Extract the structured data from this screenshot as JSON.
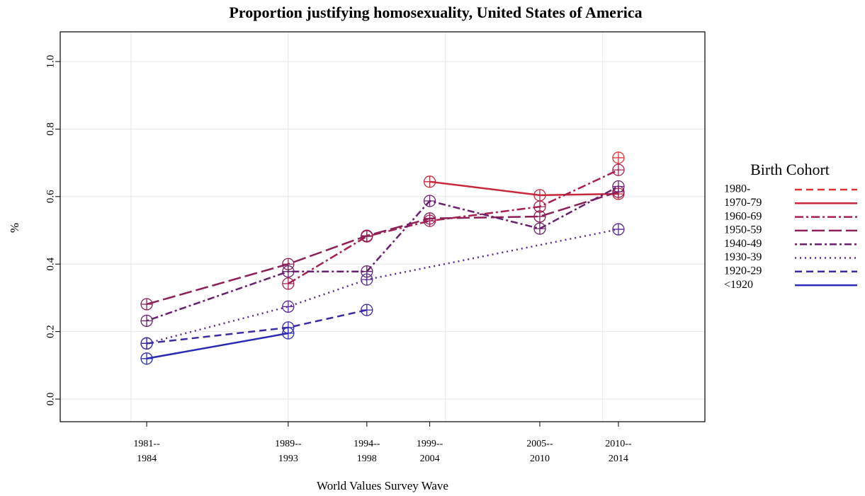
{
  "chart_data": {
    "type": "line",
    "title": "Proportion justifying homosexuality, United States of America",
    "xlabel": "World Values Survey Wave",
    "ylabel": "%",
    "legend_title": "Birth Cohort",
    "xlim": [
      1975.5,
      2016.5
    ],
    "ylim": [
      -0.067,
      1.088
    ],
    "xticks": [
      {
        "value": 1981,
        "label": "1981--\n1984"
      },
      {
        "value": 1990,
        "label": "1989--\n1993"
      },
      {
        "value": 1995,
        "label": "1994--\n1998"
      },
      {
        "value": 1999,
        "label": "1999--\n2004"
      },
      {
        "value": 2006,
        "label": "2005--\n2010"
      },
      {
        "value": 2011,
        "label": "2010--\n2014"
      }
    ],
    "xgrid": [
      1980,
      1990,
      2000,
      2010
    ],
    "yticks": [
      {
        "value": 0,
        "label": "0.0"
      },
      0.2,
      0.4,
      0.6,
      0.8,
      {
        "value": 1,
        "label": "1.0"
      }
    ],
    "grid": true,
    "series": [
      {
        "name": "1980-",
        "color": "#e03434",
        "linestyle": "dashed",
        "x": [
          2011
        ],
        "values": [
          0.715
        ]
      },
      {
        "name": "1970-79",
        "color": "#c8283c",
        "linestyle": "solid",
        "x": [
          1999,
          2006,
          2011
        ],
        "values": [
          0.644,
          0.604,
          0.608
        ]
      },
      {
        "name": "1960-69",
        "color": "#a8204e",
        "linestyle": "dashdot",
        "x": [
          1990,
          1995,
          1999,
          2006,
          2011
        ],
        "values": [
          0.342,
          0.482,
          0.528,
          0.57,
          0.679
        ]
      },
      {
        "name": "1950-59",
        "color": "#8c2058",
        "linestyle": "longdash",
        "x": [
          1981,
          1990,
          1995,
          1999,
          2006,
          2011
        ],
        "values": [
          0.281,
          0.4,
          0.484,
          0.535,
          0.541,
          0.614
        ]
      },
      {
        "name": "1940-49",
        "color": "#6a2070",
        "linestyle": "dotdash",
        "x": [
          1981,
          1990,
          1995,
          1999,
          2006,
          2011
        ],
        "values": [
          0.232,
          0.378,
          0.378,
          0.587,
          0.505,
          0.63
        ]
      },
      {
        "name": "1930-39",
        "color": "#5a2a94",
        "linestyle": "dotted",
        "x": [
          1981,
          1990,
          1995,
          2011
        ],
        "values": [
          0.165,
          0.274,
          0.354,
          0.503
        ]
      },
      {
        "name": "1920-29",
        "color": "#3c2ca4",
        "linestyle": "dashed",
        "x": [
          1981,
          1990,
          1995
        ],
        "values": [
          0.165,
          0.212,
          0.264
        ]
      },
      {
        "name": "<1920",
        "color": "#2a2ab4",
        "linestyle": "solid",
        "x": [
          1981,
          1990
        ],
        "values": [
          0.12,
          0.195
        ]
      }
    ]
  }
}
